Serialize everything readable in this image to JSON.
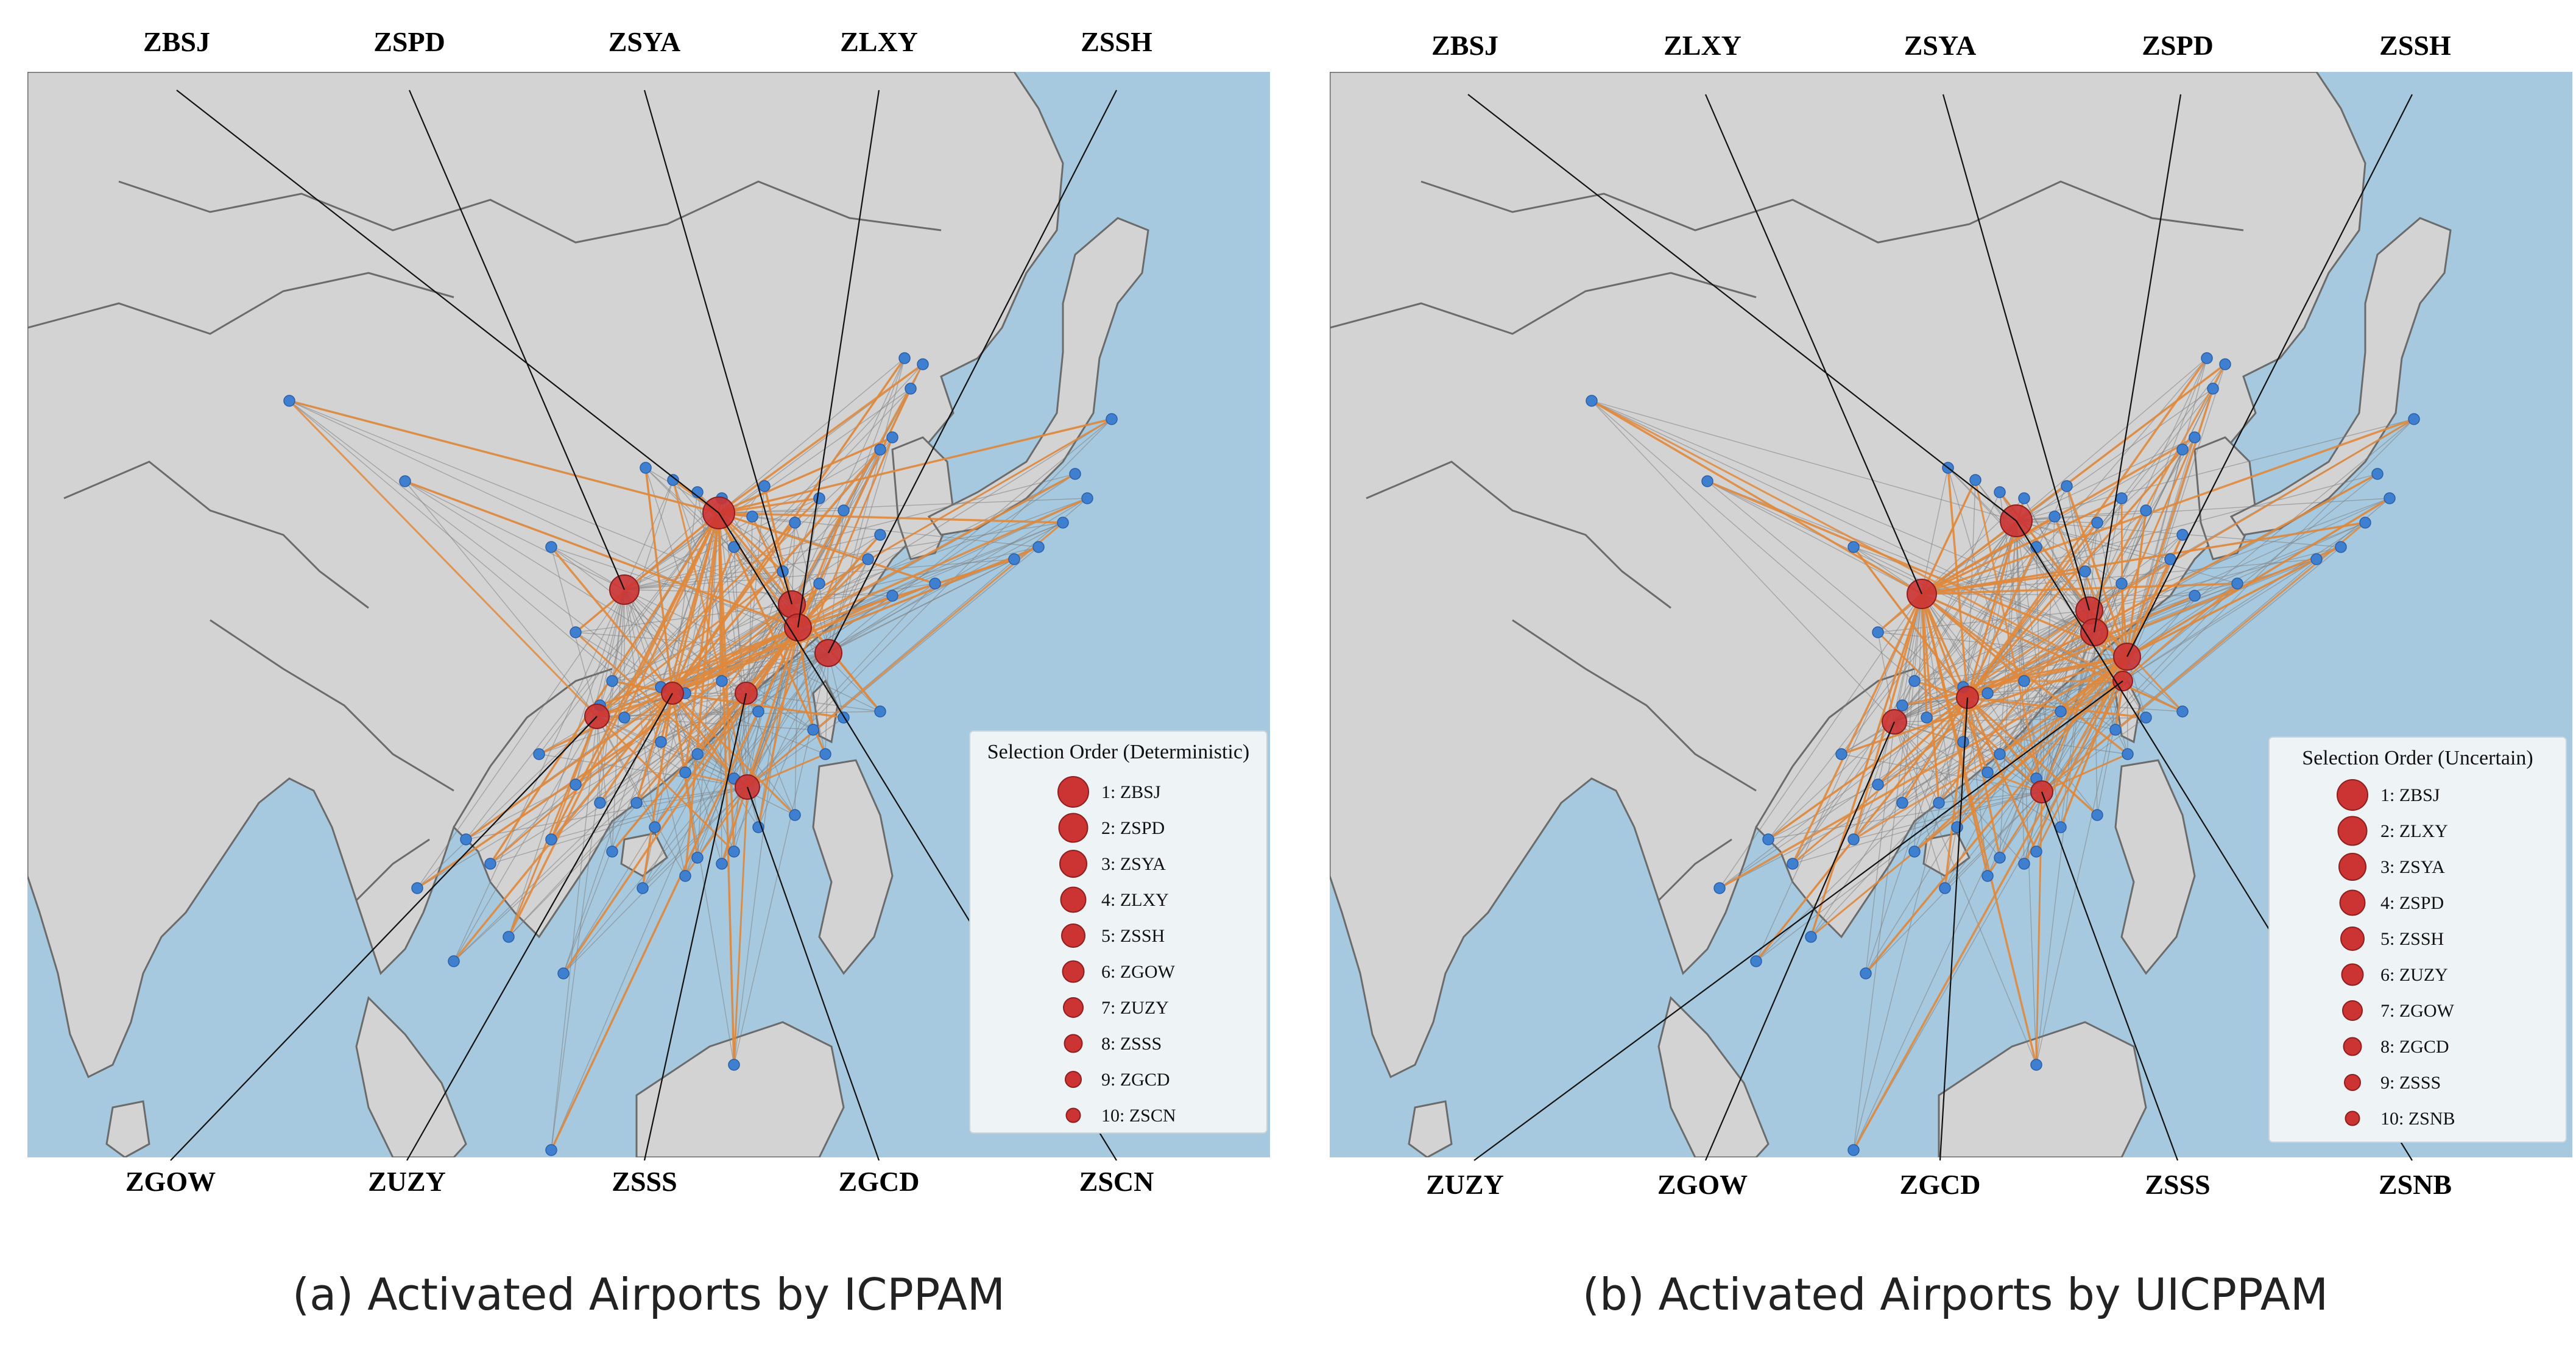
{
  "colors": {
    "ocean": "#a7c9df",
    "land": "#d3d3d3",
    "border": "#6b6b6b",
    "orange_route": "#e0883b",
    "gray_route": "#7d7d7d",
    "airport_blue": "#3f7fd0",
    "airport_red": "#cc3333",
    "legend_bg": "#eef3f6"
  },
  "panels": [
    {
      "caption": "(a) Activated Airports by ICPPAM",
      "top_codes": [
        "ZBSJ",
        "ZSPD",
        "ZSYA",
        "ZLXY",
        "ZSSH"
      ],
      "bottom_codes": [
        "ZGOW",
        "ZUZY",
        "ZSSS",
        "ZGCD",
        "ZSCN"
      ],
      "legend": {
        "title": "Selection Order (Deterministic)",
        "items": [
          "1: ZBSJ",
          "2: ZSPD",
          "3: ZSYA",
          "4: ZLXY",
          "5: ZSSH",
          "6: ZGOW",
          "7: ZUZY",
          "8: ZSSS",
          "9: ZGCD",
          "10: ZSCN"
        ]
      }
    },
    {
      "caption": "(b) Activated Airports by UICPPAM",
      "top_codes": [
        "ZBSJ",
        "ZLXY",
        "ZSYA",
        "ZSPD",
        "ZSSH"
      ],
      "bottom_codes": [
        "ZUZY",
        "ZGOW",
        "ZGCD",
        "ZSSS",
        "ZSNB"
      ],
      "legend": {
        "title": "Selection Order (Uncertain)",
        "items": [
          "1: ZBSJ",
          "2: ZLXY",
          "3: ZSYA",
          "4: ZSPD",
          "5: ZSSH",
          "6: ZUZY",
          "7: ZGOW",
          "8: ZGCD",
          "9: ZSSS",
          "10: ZSNB"
        ]
      }
    }
  ]
}
